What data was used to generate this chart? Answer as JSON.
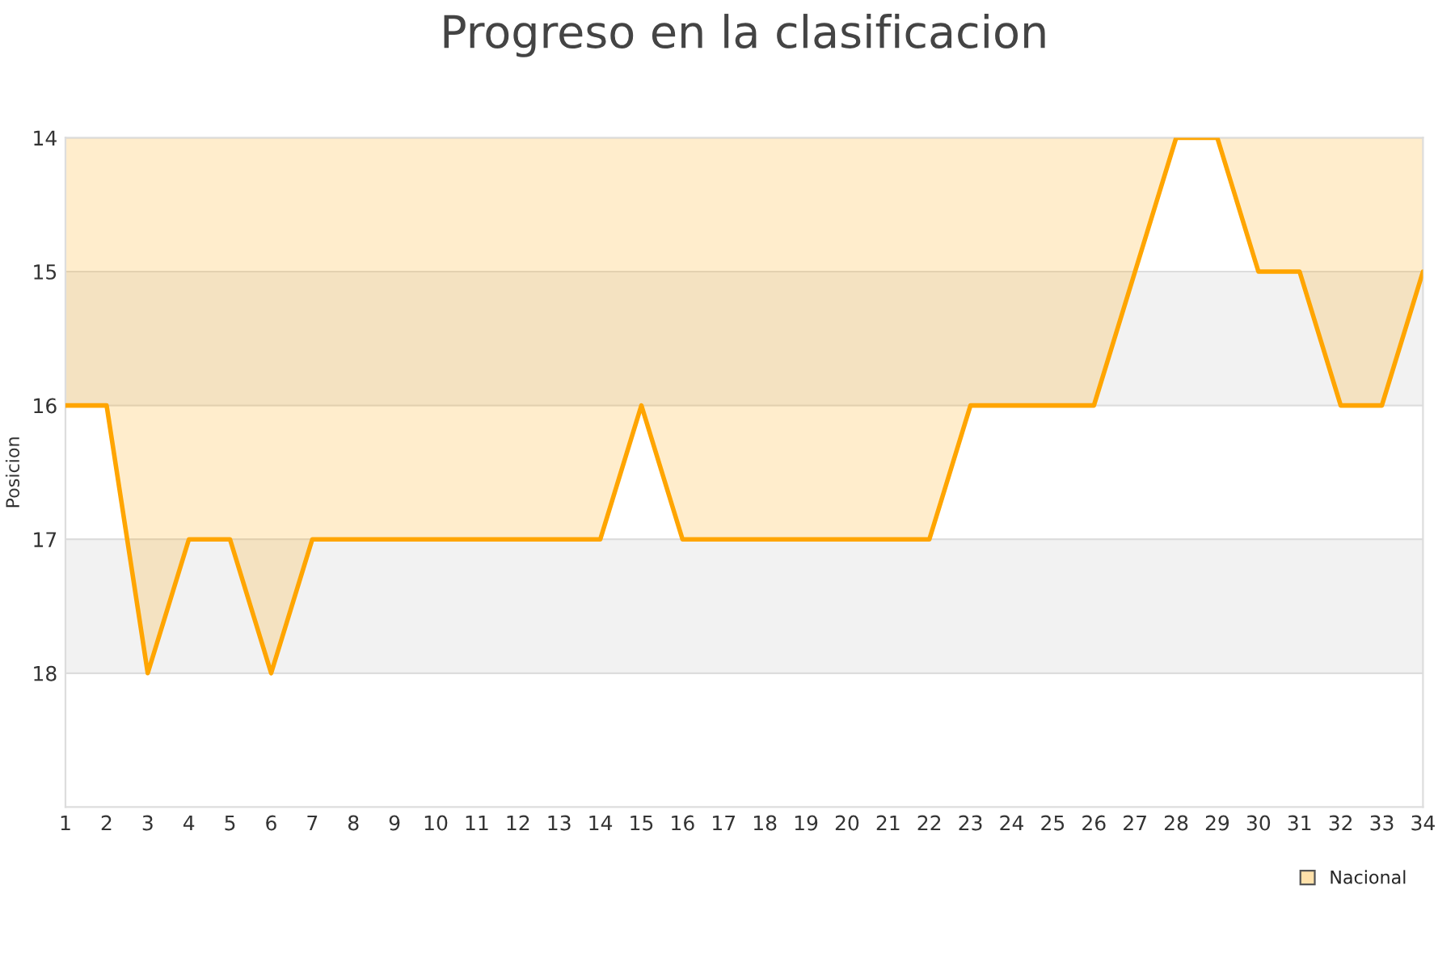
{
  "chart_data": {
    "type": "area",
    "title": "Progreso en la clasificacion",
    "ylabel": "Posicion",
    "x": [
      1,
      2,
      3,
      4,
      5,
      6,
      7,
      8,
      9,
      10,
      11,
      12,
      13,
      14,
      15,
      16,
      17,
      18,
      19,
      20,
      21,
      22,
      23,
      24,
      25,
      26,
      27,
      28,
      29,
      30,
      31,
      32,
      33,
      34
    ],
    "series": [
      {
        "name": "Nacional",
        "color": "#ffa500",
        "values": [
          16,
          16,
          18,
          17,
          17,
          18,
          17,
          17,
          17,
          17,
          17,
          17,
          17,
          17,
          16,
          17,
          17,
          17,
          17,
          17,
          17,
          17,
          16,
          16,
          16,
          16,
          15,
          14,
          14,
          15,
          15,
          16,
          16,
          15
        ]
      }
    ],
    "xlim": [
      1,
      34
    ],
    "xticks": [
      1,
      2,
      3,
      4,
      5,
      6,
      7,
      8,
      9,
      10,
      11,
      12,
      13,
      14,
      15,
      16,
      17,
      18,
      19,
      20,
      21,
      22,
      23,
      24,
      25,
      26,
      27,
      28,
      29,
      30,
      31,
      32,
      33,
      34
    ],
    "ylim": [
      19,
      14
    ],
    "yticks": [
      14,
      15,
      16,
      17,
      18
    ],
    "bands": [
      {
        "axis": "y",
        "from": 15,
        "to": 16,
        "color": "#f2f2f2"
      },
      {
        "axis": "y",
        "from": 17,
        "to": 18,
        "color": "#f2f2f2"
      }
    ],
    "grid": "y",
    "legend": "bottom right"
  }
}
